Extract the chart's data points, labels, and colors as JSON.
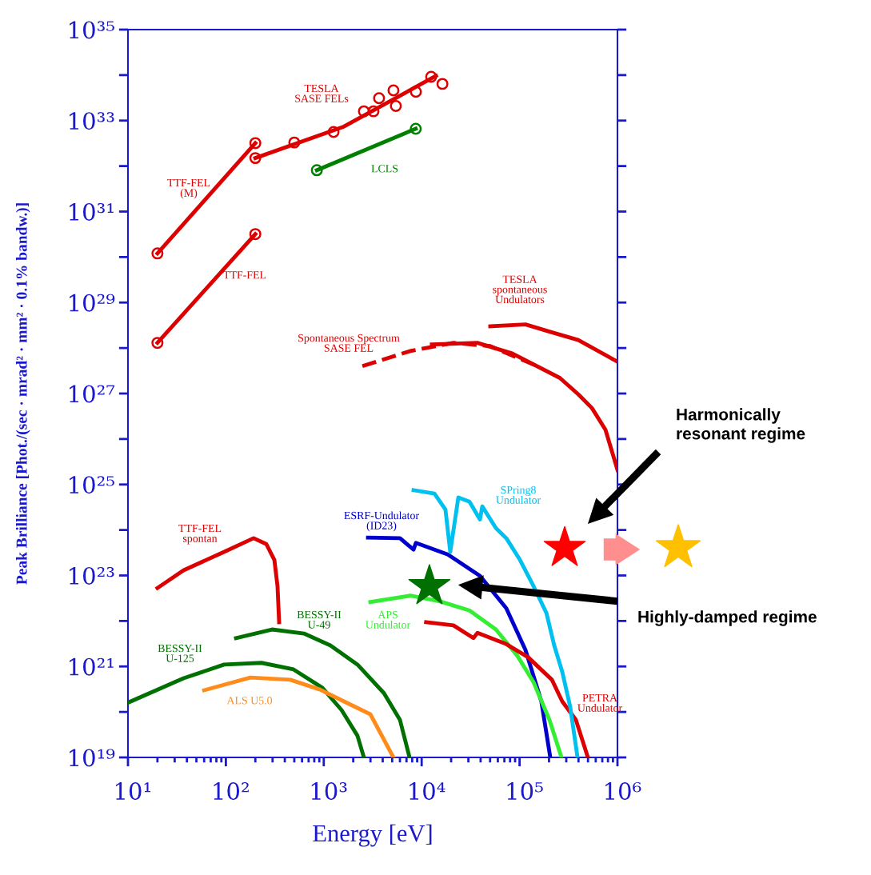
{
  "chart_data": {
    "type": "line",
    "xlabel": "Energy [eV]",
    "ylabel": "Peak Brilliance [Phot./(sec · mrad² · mm² · 0.1% bandw.)]",
    "log": "xy",
    "xlim": [
      10,
      1000000
    ],
    "ylim": [
      1e+19,
      1e+35
    ],
    "xticks": [
      {
        "value": 10,
        "label": "10¹"
      },
      {
        "value": 20,
        "label": null
      },
      {
        "value": 30,
        "label": null
      },
      {
        "value": 40,
        "label": null
      },
      {
        "value": 50,
        "label": null
      },
      {
        "value": 60,
        "label": null
      },
      {
        "value": 70,
        "label": null
      },
      {
        "value": 80,
        "label": null
      },
      {
        "value": 90,
        "label": null
      },
      {
        "value": 100,
        "label": "10²"
      },
      {
        "value": 200,
        "label": null
      },
      {
        "value": 300,
        "label": null
      },
      {
        "value": 400,
        "label": null
      },
      {
        "value": 500,
        "label": null
      },
      {
        "value": 600,
        "label": null
      },
      {
        "value": 700,
        "label": null
      },
      {
        "value": 800,
        "label": null
      },
      {
        "value": 900,
        "label": null
      },
      {
        "value": 1000,
        "label": "10³"
      },
      {
        "value": 2000,
        "label": null
      },
      {
        "value": 3000,
        "label": null
      },
      {
        "value": 4000,
        "label": null
      },
      {
        "value": 5000,
        "label": null
      },
      {
        "value": 6000,
        "label": null
      },
      {
        "value": 7000,
        "label": null
      },
      {
        "value": 8000,
        "label": null
      },
      {
        "value": 9000,
        "label": null
      },
      {
        "value": 10000,
        "label": "10⁴"
      },
      {
        "value": 20000,
        "label": null
      },
      {
        "value": 30000,
        "label": null
      },
      {
        "value": 40000,
        "label": null
      },
      {
        "value": 50000,
        "label": null
      },
      {
        "value": 60000,
        "label": null
      },
      {
        "value": 70000,
        "label": null
      },
      {
        "value": 80000,
        "label": null
      },
      {
        "value": 90000,
        "label": null
      },
      {
        "value": 100000,
        "label": "10⁵"
      },
      {
        "value": 200000,
        "label": null
      },
      {
        "value": 300000,
        "label": null
      },
      {
        "value": 400000,
        "label": null
      },
      {
        "value": 500000,
        "label": null
      },
      {
        "value": 600000,
        "label": null
      },
      {
        "value": 700000,
        "label": null
      },
      {
        "value": 800000,
        "label": null
      },
      {
        "value": 900000,
        "label": null
      },
      {
        "value": 1000000,
        "label": "10⁶"
      }
    ],
    "yticks": [
      {
        "value": 1e+19,
        "label": "10¹⁹"
      },
      {
        "value": 1e+20,
        "label": null
      },
      {
        "value": 1e+21,
        "label": "10²¹"
      },
      {
        "value": 1e+22,
        "label": null
      },
      {
        "value": 1e+23,
        "label": "10²³"
      },
      {
        "value": 1e+24,
        "label": null
      },
      {
        "value": 1e+25,
        "label": "10²⁵"
      },
      {
        "value": 1e+26,
        "label": null
      },
      {
        "value": 1e+27,
        "label": "10²⁷"
      },
      {
        "value": 1e+28,
        "label": null
      },
      {
        "value": 1e+29,
        "label": "10²⁹"
      },
      {
        "value": 1e+30,
        "label": null
      },
      {
        "value": 1e+31,
        "label": "10³¹"
      },
      {
        "value": 1e+32,
        "label": null
      },
      {
        "value": 1e+33,
        "label": "10³³"
      },
      {
        "value": 1e+34,
        "label": null
      },
      {
        "value": 1e+35,
        "label": "10³⁵"
      }
    ],
    "grid": false,
    "legend": false,
    "series": [
      {
        "name": "TESLA\nSASE FELs",
        "type": "scatter",
        "marker": "circle",
        "color": "#dd0000",
        "x": [
          200,
          500,
          1260,
          2570,
          3220,
          3670,
          5150,
          5450,
          8730,
          12500,
          16300
        ],
        "values": [
          1.5e+32,
          3.3e+32,
          5.6e+32,
          1.6e+33,
          1.6e+33,
          3.1e+33,
          4.6e+33,
          2.1e+33,
          4.3e+33,
          9.2e+33,
          6.4e+33
        ]
      },
      {
        "color": "#dd0000",
        "x": [
          200,
          1610,
          14000
        ],
        "values": [
          1.5e+32,
          7.4e+32,
          9.6e+33
        ]
      },
      {
        "name": "TTF-FEL\n(M)",
        "marker": "circle",
        "color": "#dd0000",
        "x": [
          20,
          200
        ],
        "values": [
          1.2e+30,
          3.2e+32
        ]
      },
      {
        "name": "TTF-FEL",
        "marker": "circle",
        "color": "#dd0000",
        "x": [
          20,
          200
        ],
        "values": [
          1.3e+28,
          3.2e+30
        ]
      },
      {
        "name": "LCLS",
        "marker": "circle",
        "color": "#008000",
        "x": [
          850,
          8700
        ],
        "values": [
          8.1e+31,
          6.6e+32
        ]
      },
      {
        "name": "Spontaneous Spectrum\nSASE FEL",
        "line_style": "dashed",
        "color": "#dd0000",
        "x": [
          2480,
          7660,
          21100,
          50200,
          147000
        ],
        "values": [
          4e+27,
          8.6e+27,
          1.3e+28,
          1.1e+28,
          4.1e+27
        ]
      },
      {
        "color": "#dd0000",
        "x": [
          12700,
          37000,
          84000,
          258000,
          398000,
          548000,
          754000,
          1000000
        ],
        "values": [
          1.2e+28,
          1.3e+28,
          7.6e+27,
          2.2e+27,
          9.6e+26,
          4.8e+26,
          1.6e+26,
          2.1e+25
        ]
      },
      {
        "name": "TESLA\nspontaneous\nUndulators",
        "color": "#dd0000",
        "x": [
          50200,
          115000,
          202000,
          398000,
          1000000
        ],
        "values": [
          3e+28,
          3.3e+28,
          2.3e+28,
          1.5e+28,
          5e+27
        ]
      },
      {
        "name": "TTF-FEL\nspontan",
        "color": "#dd0000",
        "x": [
          20,
          37,
          96,
          192,
          259,
          313,
          337,
          350
        ],
        "values": [
          5.3e+22,
          1.3e+23,
          3.3e+23,
          6.6e+23,
          4.9e+23,
          2.2e+23,
          5.8e+22,
          9.4e+21
        ]
      },
      {
        "name": "BESSY-II\nU-125",
        "color": "#007000",
        "x": [
          10,
          37,
          96,
          231,
          491,
          966,
          1520,
          2210,
          2570
        ],
        "values": [
          1.6e+20,
          5.5e+20,
          1.1e+21,
          1.2e+21,
          8.6e+20,
          3.4e+20,
          1.1e+20,
          3e+19,
          1e+19
        ]
      },
      {
        "name": "BESSY-II\nU-49",
        "color": "#007000",
        "x": [
          127,
          296,
          627,
          1170,
          2210,
          4110,
          6000,
          7520
        ],
        "values": [
          4.2e+21,
          6.5e+21,
          5.3e+21,
          2.9e+21,
          1.1e+21,
          2.6e+20,
          6.7e+19,
          1e+19
        ]
      },
      {
        "name": "ALS U5.0",
        "color": "#ff8c1a",
        "x": [
          60,
          178,
          455,
          914,
          1610,
          2990,
          5150
        ],
        "values": [
          3e+20,
          5.7e+20,
          5.1e+20,
          3.1e+20,
          1.7e+20,
          8.9e+19,
          1e+19
        ]
      },
      {
        "name": "ESRF-Undulator\n(ID23)",
        "color": "#0000cc",
        "x": [
          2830,
          6000,
          8260,
          8730,
          18500,
          39400,
          73200,
          115000,
          167000,
          206000
        ],
        "values": [
          6.8e+23,
          6.6e+23,
          3.7e+23,
          5.2e+23,
          2.9e+23,
          9.8e+22,
          1.9e+22,
          2.3e+21,
          1.7e+20,
          1e+19
        ]
      },
      {
        "name": "APS\nUndulator",
        "color": "#33ee33",
        "x": [
          2990,
          7660,
          15400,
          30800,
          57300,
          95200,
          139000,
          202000,
          268000
        ],
        "values": [
          2.6e+22,
          3.6e+22,
          2.7e+22,
          1.7e+22,
          6.5e+21,
          1.7e+21,
          4.5e+20,
          6.7e+19,
          1e+19
        ]
      },
      {
        "name": "PETRA\nUndulator",
        "color": "#dd0000",
        "x": [
          11100,
          21100,
          33800,
          37200,
          73200,
          122000,
          214000,
          273000,
          376000,
          499000
        ],
        "values": [
          9.4e+21,
          8e+21,
          4.2e+21,
          5.5e+21,
          3.1e+21,
          1.6e+21,
          5.1e+20,
          1.7e+20,
          6.7e+19,
          1e+19
        ]
      },
      {
        "name": "SPring8\nUndulator",
        "color": "#00c0f0",
        "x": [
          8260,
          13500,
          17500,
          19600,
          23700,
          30800,
          39400,
          41600,
          57300,
          73200,
          101000,
          139000,
          188000,
          226000,
          273000,
          329000,
          391000
        ],
        "values": [
          7.5e+24,
          6.3e+24,
          2.8e+24,
          3.3e+23,
          5.2e+24,
          4.2e+24,
          1.7e+24,
          3.3e+24,
          1.1e+24,
          6.6e+23,
          2.2e+23,
          5.8e+22,
          1.5e+22,
          2.9e+21,
          7.6e+20,
          1.3e+20,
          1e+19
        ]
      },
      {
        "type": "scatter",
        "marker": "star",
        "colors": [
          "#ff0000",
          "#007000"
        ],
        "x": [
          289000,
          12000
        ],
        "values": [
          4e+23,
          5.8e+22
        ]
      }
    ],
    "annotations": [
      "Harmonically\nresonant regime",
      "Highly-damped regime"
    ]
  }
}
